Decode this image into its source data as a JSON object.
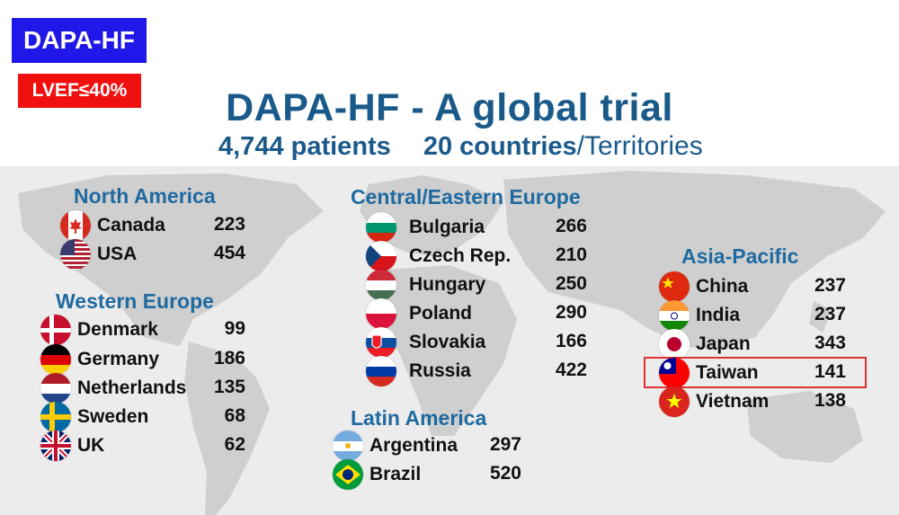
{
  "badges": {
    "main": "DAPA-HF",
    "sub": "LVEF≤40%"
  },
  "title": "DAPA-HF - A global trial",
  "subtitle": {
    "patients": "4,744 patients",
    "countries": "20 countries",
    "territories": "/Territories"
  },
  "regions": {
    "north_america": {
      "title": "North America",
      "countries": [
        {
          "name": "Canada",
          "count": "223",
          "flag": "canada-flag"
        },
        {
          "name": "USA",
          "count": "454",
          "flag": "usa-flag"
        }
      ]
    },
    "western_europe": {
      "title": "Western Europe",
      "countries": [
        {
          "name": "Denmark",
          "count": "99",
          "flag": "denmark-flag"
        },
        {
          "name": "Germany",
          "count": "186",
          "flag": "germany-flag"
        },
        {
          "name": "Netherlands",
          "count": "135",
          "flag": "netherlands-flag"
        },
        {
          "name": "Sweden",
          "count": "68",
          "flag": "sweden-flag"
        },
        {
          "name": "UK",
          "count": "62",
          "flag": "uk-flag"
        }
      ]
    },
    "central_eastern_europe": {
      "title": "Central/Eastern Europe",
      "countries": [
        {
          "name": "Bulgaria",
          "count": "266",
          "flag": "bulgaria-flag"
        },
        {
          "name": "Czech Rep.",
          "count": "210",
          "flag": "czech-flag"
        },
        {
          "name": "Hungary",
          "count": "250",
          "flag": "hungary-flag"
        },
        {
          "name": "Poland",
          "count": "290",
          "flag": "poland-flag"
        },
        {
          "name": "Slovakia",
          "count": "166",
          "flag": "slovakia-flag"
        },
        {
          "name": "Russia",
          "count": "422",
          "flag": "russia-flag"
        }
      ]
    },
    "latin_america": {
      "title": "Latin America",
      "countries": [
        {
          "name": "Argentina",
          "count": "297",
          "flag": "argentina-flag"
        },
        {
          "name": "Brazil",
          "count": "520",
          "flag": "brazil-flag"
        }
      ]
    },
    "asia_pacific": {
      "title": "Asia-Pacific",
      "countries": [
        {
          "name": "China",
          "count": "237",
          "flag": "china-flag"
        },
        {
          "name": "India",
          "count": "237",
          "flag": "india-flag"
        },
        {
          "name": "Japan",
          "count": "343",
          "flag": "japan-flag"
        },
        {
          "name": "Taiwan",
          "count": "141",
          "flag": "taiwan-flag",
          "highlighted": true
        },
        {
          "name": "Vietnam",
          "count": "138",
          "flag": "vietnam-flag"
        }
      ]
    }
  },
  "colors": {
    "badge_blue": "#2018e8",
    "badge_red": "#f01010",
    "title_blue": "#1a5a8a",
    "region_blue": "#1f6aa0",
    "highlight": "#dd3333"
  }
}
